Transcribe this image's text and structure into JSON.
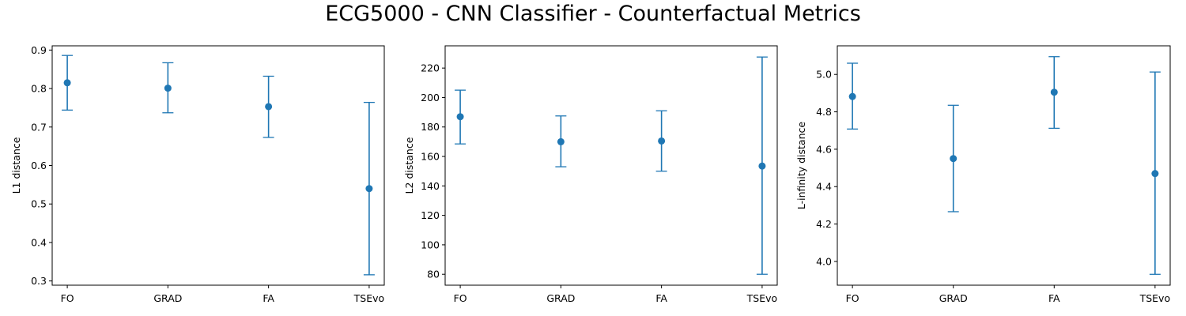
{
  "figure": {
    "title": "ECG5000 - CNN Classifier - Counterfactual Metrics",
    "marker_color": "#1f77b4"
  },
  "chart_data": [
    {
      "type": "scatter",
      "categories": [
        "FO",
        "GRAD",
        "FA",
        "TSEvo"
      ],
      "values": [
        0.815,
        0.801,
        0.753,
        0.54
      ],
      "error_low": [
        0.744,
        0.737,
        0.673,
        0.316
      ],
      "error_high": [
        0.886,
        0.867,
        0.832,
        0.764
      ],
      "xlabel": "",
      "ylabel": "L1 distance",
      "ylim": [
        0.289,
        0.911
      ],
      "yticks": [
        0.3,
        0.4,
        0.5,
        0.6,
        0.7,
        0.8,
        0.9
      ],
      "ytick_labels": [
        "0.3",
        "0.4",
        "0.5",
        "0.6",
        "0.7",
        "0.8",
        "0.9"
      ],
      "grid": false
    },
    {
      "type": "scatter",
      "categories": [
        "FO",
        "GRAD",
        "FA",
        "TSEvo"
      ],
      "values": [
        187.0,
        170.0,
        170.5,
        153.5
      ],
      "error_low": [
        168.5,
        153.0,
        150.0,
        80.0
      ],
      "error_high": [
        205.0,
        187.5,
        191.0,
        227.5
      ],
      "xlabel": "",
      "ylabel": "L2 distance",
      "ylim": [
        72.6,
        235.1
      ],
      "yticks": [
        80,
        100,
        120,
        140,
        160,
        180,
        200,
        220
      ],
      "ytick_labels": [
        "80",
        "100",
        "120",
        "140",
        "160",
        "180",
        "200",
        "220"
      ],
      "grid": false
    },
    {
      "type": "scatter",
      "categories": [
        "FO",
        "GRAD",
        "FA",
        "TSEvo"
      ],
      "values": [
        4.882,
        4.55,
        4.905,
        4.47
      ],
      "error_low": [
        4.708,
        4.266,
        4.712,
        3.931
      ],
      "error_high": [
        5.06,
        4.835,
        5.095,
        5.013
      ],
      "xlabel": "",
      "ylabel": "L-infinity distance",
      "ylim": [
        3.873,
        5.153
      ],
      "yticks": [
        4.0,
        4.2,
        4.4,
        4.6,
        4.8,
        5.0
      ],
      "ytick_labels": [
        "4.0",
        "4.2",
        "4.4",
        "4.6",
        "4.8",
        "5.0"
      ],
      "grid": false
    }
  ]
}
